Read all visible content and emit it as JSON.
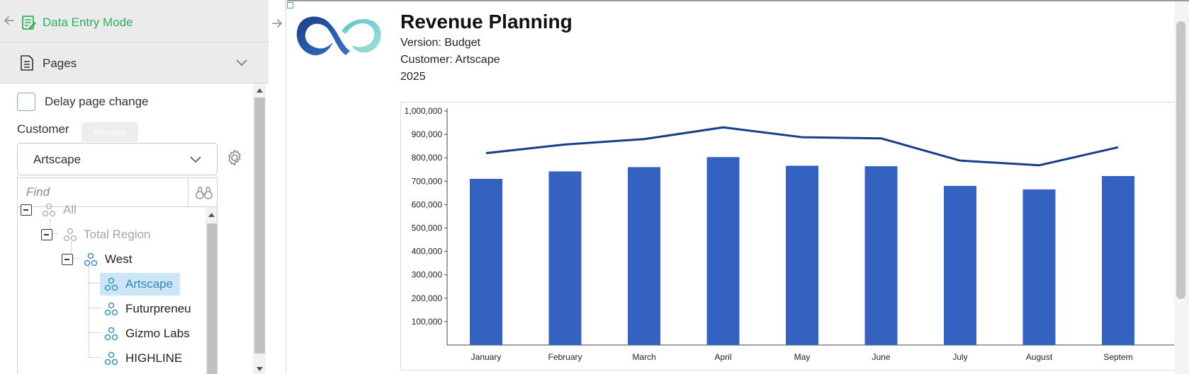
{
  "header": {
    "mode_label": "Data Entry Mode"
  },
  "pages": {
    "label": "Pages"
  },
  "filters": {
    "delay_label": "Delay page change",
    "customer_label": "Customer",
    "tooltip": "Artscape",
    "customer_value": "Artscape",
    "find_placeholder": "Find"
  },
  "tree": {
    "all": "All",
    "total_region": "Total Region",
    "west": "West",
    "items": [
      "Artscape",
      "Futurpreneu",
      "Gizmo Labs",
      "HIGHLINE"
    ],
    "selected": "Artscape"
  },
  "report": {
    "title": "Revenue Planning",
    "version": "Version: Budget",
    "customer": "Customer: Artscape",
    "year": "2025"
  },
  "colors": {
    "accent_green": "#2bb35c",
    "bar": "#3362c0",
    "line": "#163d8a",
    "selection": "#cde6f7"
  },
  "chart_data": {
    "type": "bar",
    "categories": [
      "January",
      "February",
      "March",
      "April",
      "May",
      "June",
      "July",
      "August",
      "Septem"
    ],
    "series": [
      {
        "type": "bar",
        "values": [
          710000,
          742000,
          760000,
          803000,
          766000,
          764000,
          680000,
          665000,
          722000
        ]
      },
      {
        "type": "line",
        "values": [
          820000,
          857000,
          880000,
          930000,
          888000,
          883000,
          788000,
          768000,
          845000
        ]
      }
    ],
    "yticks": [
      "100,000",
      "200,000",
      "300,000",
      "400,000",
      "500,000",
      "600,000",
      "700,000",
      "800,000",
      "900,000",
      "1,000,000"
    ],
    "ylim": [
      0,
      1000000
    ],
    "grid": false
  }
}
